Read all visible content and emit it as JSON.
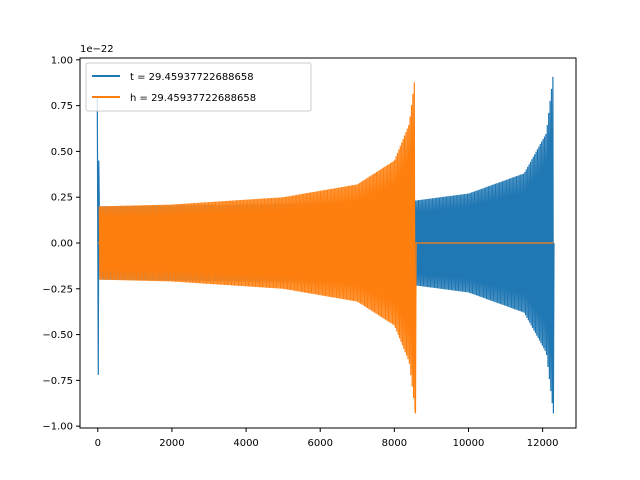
{
  "chart_data": {
    "type": "line",
    "title": "",
    "xlabel": "",
    "ylabel": "",
    "offset_label": "1e−22",
    "xlim": [
      -480,
      12900
    ],
    "ylim": [
      -1.01,
      1.01
    ],
    "xticks": [
      0,
      2000,
      4000,
      6000,
      8000,
      10000,
      12000
    ],
    "xtick_labels": [
      "0",
      "2000",
      "4000",
      "6000",
      "8000",
      "10000",
      "12000"
    ],
    "yticks": [
      -1.0,
      -0.75,
      -0.5,
      -0.25,
      0.0,
      0.25,
      0.5,
      0.75,
      1.0
    ],
    "ytick_labels": [
      "−1.00",
      "−0.75",
      "−0.50",
      "−0.25",
      "0.00",
      "0.25",
      "0.50",
      "0.75",
      "1.00"
    ],
    "grid": false,
    "legend_position": "top-left",
    "series": [
      {
        "name": "t = 29.45937722688658",
        "color": "#1f77b4",
        "description": "chirp waveform",
        "x_start": 0,
        "x_end": 12290,
        "initial_spike": [
          -0.72,
          0.8
        ],
        "amplitude_envelope": [
          {
            "x": 0,
            "amp": 0.2
          },
          {
            "x": 4000,
            "amp": 0.21
          },
          {
            "x": 8500,
            "amp": 0.23
          },
          {
            "x": 10000,
            "amp": 0.27
          },
          {
            "x": 11500,
            "amp": 0.38
          },
          {
            "x": 12100,
            "amp": 0.6
          },
          {
            "x": 12290,
            "amp": 0.93
          }
        ],
        "final_value": 0.0
      },
      {
        "name": "h = 29.45937722688658",
        "color": "#ff7f0e",
        "description": "chirp waveform",
        "x_start": 0,
        "x_end": 8570,
        "initial_spike": [
          0.0,
          0.0
        ],
        "amplitude_envelope": [
          {
            "x": 0,
            "amp": 0.2
          },
          {
            "x": 2000,
            "amp": 0.21
          },
          {
            "x": 5000,
            "amp": 0.25
          },
          {
            "x": 7000,
            "amp": 0.32
          },
          {
            "x": 8000,
            "amp": 0.45
          },
          {
            "x": 8400,
            "amp": 0.65
          },
          {
            "x": 8570,
            "amp": 0.93
          }
        ],
        "tail_x_end": 12290,
        "final_value": 0.0
      }
    ]
  }
}
